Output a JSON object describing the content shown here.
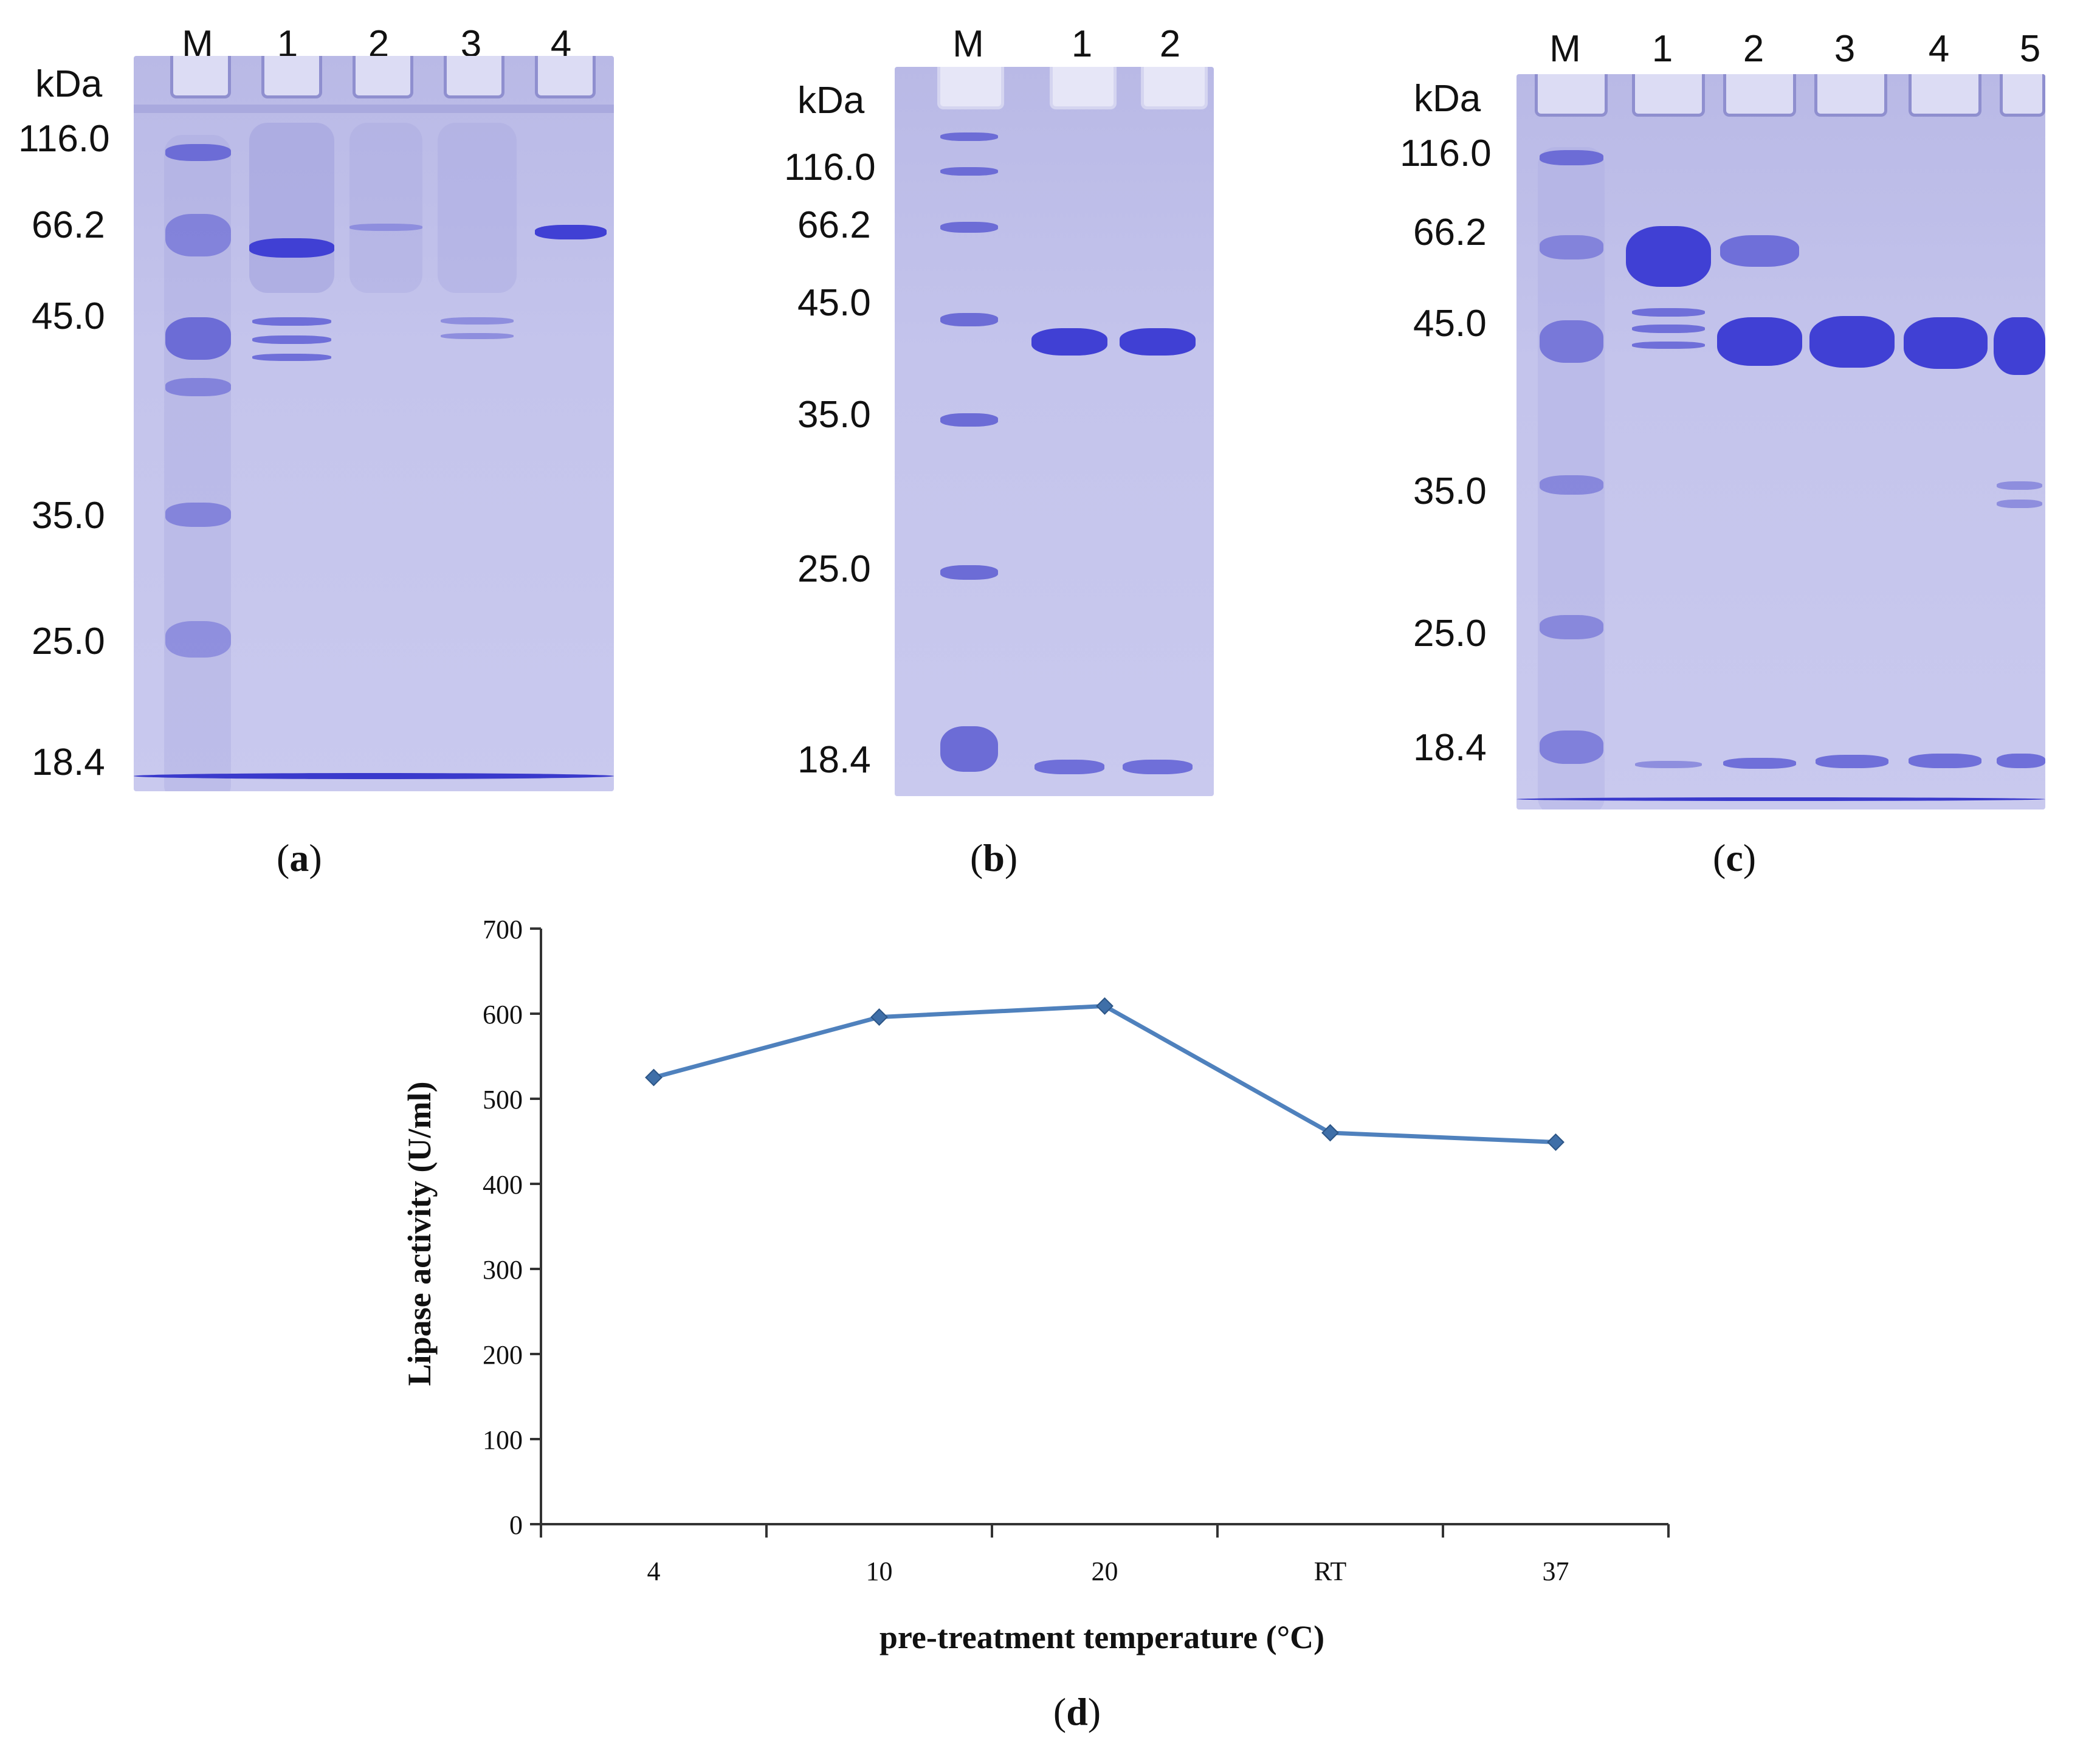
{
  "gels": {
    "a": {
      "unit": "kDa",
      "lanes": [
        "M",
        "1",
        "2",
        "3",
        "4"
      ],
      "markers": [
        "116.0",
        "66.2",
        "45.0",
        "35.0",
        "25.0",
        "18.4"
      ],
      "panel": "a"
    },
    "b": {
      "unit": "kDa",
      "lanes": [
        "M",
        "1",
        "2"
      ],
      "markers": [
        "116.0",
        "66.2",
        "45.0",
        "35.0",
        "25.0",
        "18.4"
      ],
      "panel": "b"
    },
    "c": {
      "unit": "kDa",
      "lanes": [
        "M",
        "1",
        "2",
        "3",
        "4",
        "5"
      ],
      "markers": [
        "116.0",
        "66.2",
        "45.0",
        "35.0",
        "25.0",
        "18.4"
      ],
      "panel": "c"
    }
  },
  "chart_data": {
    "type": "line",
    "panel": "d",
    "categories": [
      "4",
      "10",
      "20",
      "RT",
      "37"
    ],
    "series": [
      {
        "name": "Lipase activity",
        "values": [
          525,
          596,
          609,
          460,
          449
        ],
        "color": "#4f81bd"
      }
    ],
    "xlabel": "pre-treatment temperature (°C)",
    "ylabel": "Lipase activity (U/ml)",
    "ylim": [
      0,
      700
    ],
    "yticks": [
      "0",
      "100",
      "200",
      "300",
      "400",
      "500",
      "600",
      "700"
    ],
    "grid": false
  },
  "colors": {
    "gel": "#c4c4ec",
    "band": "#4040d4",
    "line": "#4f81bd"
  }
}
